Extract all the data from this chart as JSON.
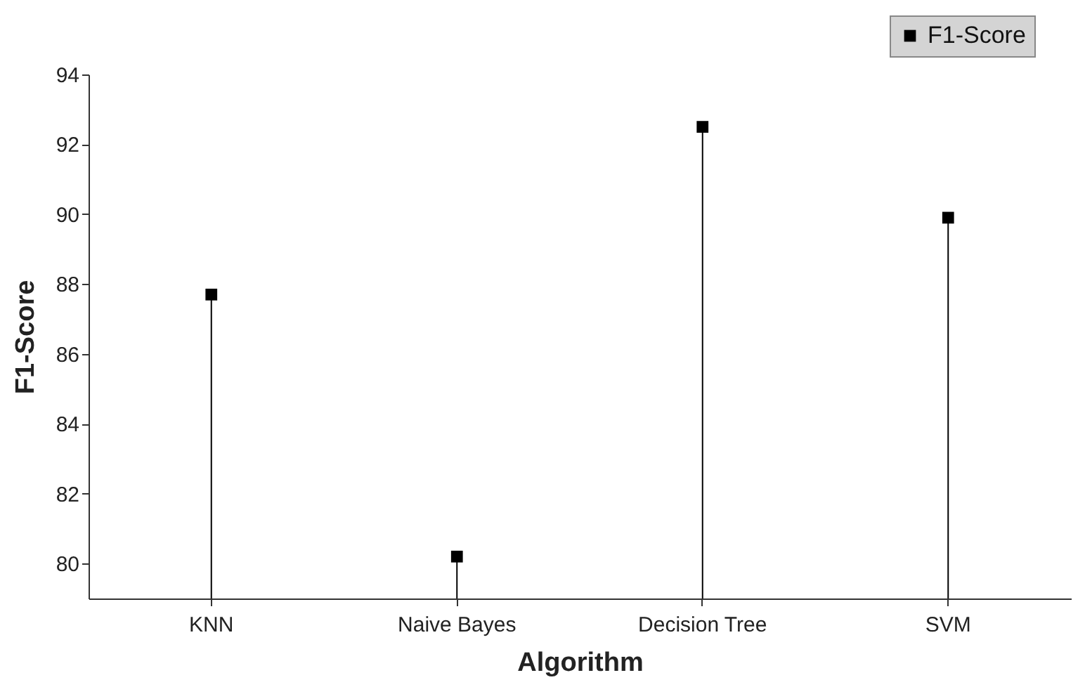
{
  "chart_data": {
    "type": "lollipop",
    "xlabel": "Algorithm",
    "ylabel": "F1-Score",
    "categories": [
      "KNN",
      "Naive Bayes",
      "Decision Tree",
      "SVM"
    ],
    "series": [
      {
        "name": "F1-Score",
        "color": "#000000",
        "values": [
          87.7,
          80.2,
          92.5,
          89.9
        ]
      }
    ],
    "ylim": [
      79.0,
      94
    ],
    "yticks": [
      80,
      82,
      84,
      86,
      88,
      90,
      92,
      94
    ],
    "legend": "top right",
    "marker": "square",
    "grid": false
  }
}
